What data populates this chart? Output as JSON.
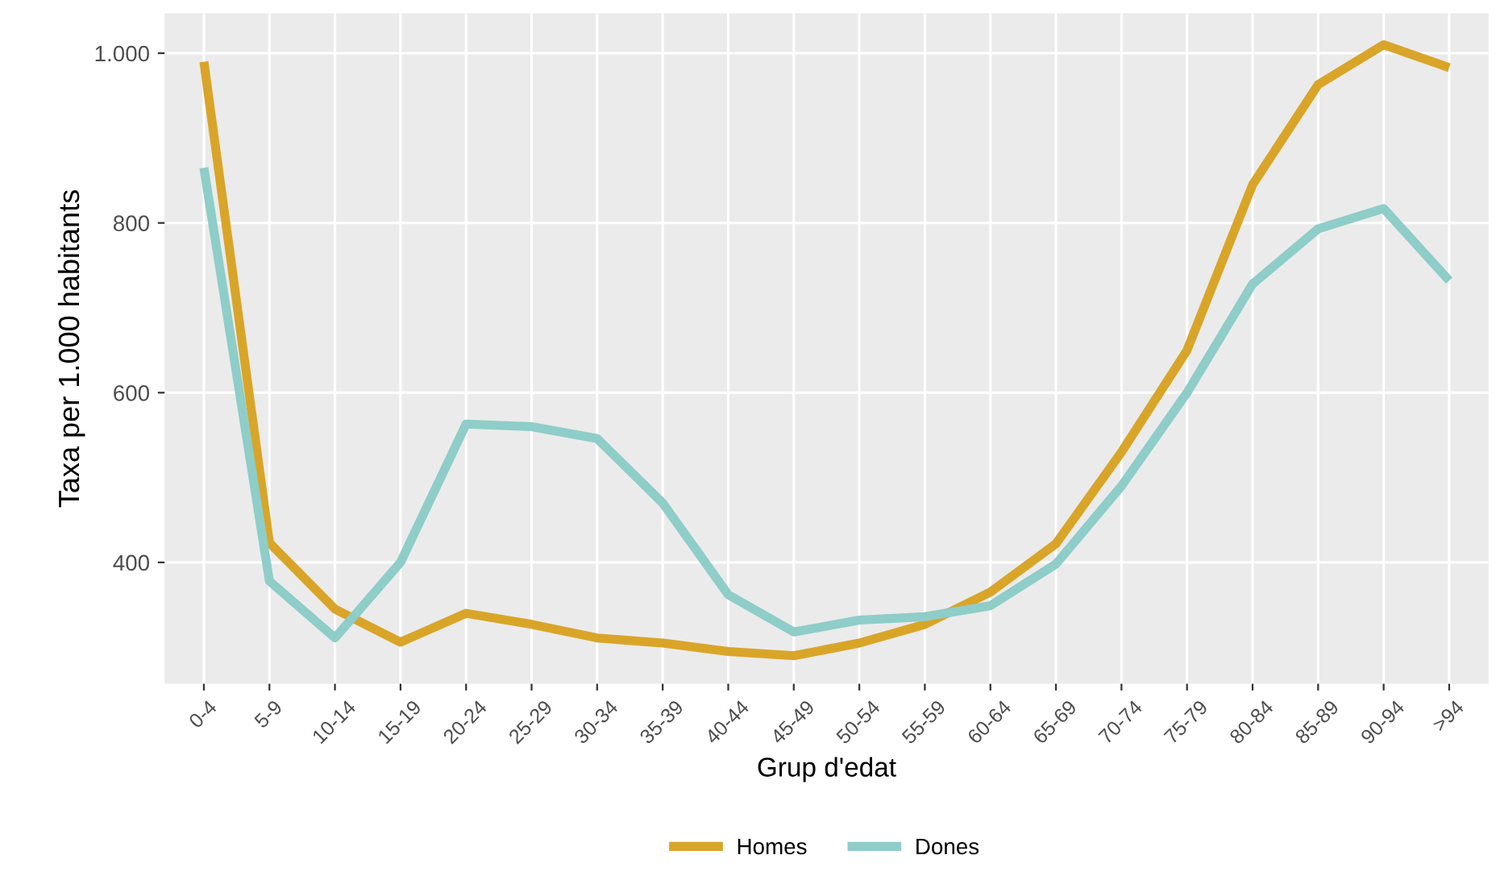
{
  "chart_data": {
    "type": "line",
    "xlabel": "Grup d'edat",
    "ylabel": "Taxa per 1.000 habitants",
    "categories": [
      "0-4",
      "5-9",
      "10-14",
      "15-19",
      "20-24",
      "25-29",
      "30-34",
      "35-39",
      "40-44",
      "45-49",
      "50-54",
      "55-59",
      "60-64",
      "65-69",
      "70-74",
      "75-79",
      "80-84",
      "85-89",
      "90-94",
      ">94"
    ],
    "series": [
      {
        "name": "Homes",
        "color": "#d9a528",
        "values": [
          990,
          423,
          345,
          306,
          340,
          327,
          311,
          305,
          295,
          290,
          305,
          327,
          365,
          422,
          530,
          650,
          845,
          963,
          1010,
          983
        ]
      },
      {
        "name": "Dones",
        "color": "#8ecdc8",
        "values": [
          865,
          378,
          311,
          400,
          563,
          560,
          546,
          470,
          362,
          318,
          332,
          336,
          349,
          398,
          490,
          600,
          728,
          793,
          817,
          732
        ]
      }
    ],
    "ylim": [
      257,
      1047
    ],
    "yticks": [
      400,
      600,
      800,
      {
        "value": 1000,
        "label": "1.000"
      }
    ],
    "grid": true,
    "legend": "bottom",
    "marker": "none",
    "line_style": "solid"
  }
}
